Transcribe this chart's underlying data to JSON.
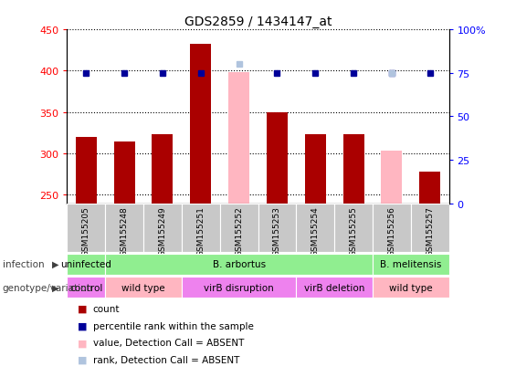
{
  "title": "GDS2859 / 1434147_at",
  "samples": [
    "GSM155205",
    "GSM155248",
    "GSM155249",
    "GSM155251",
    "GSM155252",
    "GSM155253",
    "GSM155254",
    "GSM155255",
    "GSM155256",
    "GSM155257"
  ],
  "counts": [
    320,
    315,
    323,
    432,
    null,
    350,
    323,
    323,
    null,
    278
  ],
  "counts_absent": [
    null,
    null,
    null,
    null,
    398,
    null,
    null,
    null,
    303,
    null
  ],
  "percentile_ranks": [
    75,
    75,
    75,
    75,
    null,
    75,
    75,
    75,
    75,
    75
  ],
  "percentile_absent": [
    null,
    null,
    null,
    null,
    80,
    null,
    null,
    null,
    75,
    null
  ],
  "ylim_left": [
    240,
    450
  ],
  "ylim_right": [
    0,
    100
  ],
  "yticks_left": [
    250,
    300,
    350,
    400,
    450
  ],
  "yticks_right": [
    0,
    25,
    50,
    75,
    100
  ],
  "bar_color_present": "#aa0000",
  "bar_color_absent": "#ffb6c1",
  "dot_color_present": "#000099",
  "dot_color_absent": "#b0c4de",
  "infection_groups": [
    {
      "label": "uninfected",
      "start": 0,
      "end": 1,
      "color": "#90ee90"
    },
    {
      "label": "B. arbortus",
      "start": 1,
      "end": 8,
      "color": "#90ee90"
    },
    {
      "label": "B. melitensis",
      "start": 8,
      "end": 10,
      "color": "#90ee90"
    }
  ],
  "genotype_groups": [
    {
      "label": "control",
      "start": 0,
      "end": 1,
      "color": "#ee82ee"
    },
    {
      "label": "wild type",
      "start": 1,
      "end": 3,
      "color": "#ffb6c1"
    },
    {
      "label": "virB disruption",
      "start": 3,
      "end": 6,
      "color": "#ee82ee"
    },
    {
      "label": "virB deletion",
      "start": 6,
      "end": 8,
      "color": "#ee82ee"
    },
    {
      "label": "wild type",
      "start": 8,
      "end": 10,
      "color": "#ffb6c1"
    }
  ],
  "bar_width": 0.55,
  "sample_box_color": "#c8c8c8",
  "legend_items": [
    {
      "color": "#aa0000",
      "label": "count"
    },
    {
      "color": "#000099",
      "label": "percentile rank within the sample"
    },
    {
      "color": "#ffb6c1",
      "label": "value, Detection Call = ABSENT"
    },
    {
      "color": "#b0c4de",
      "label": "rank, Detection Call = ABSENT"
    }
  ]
}
